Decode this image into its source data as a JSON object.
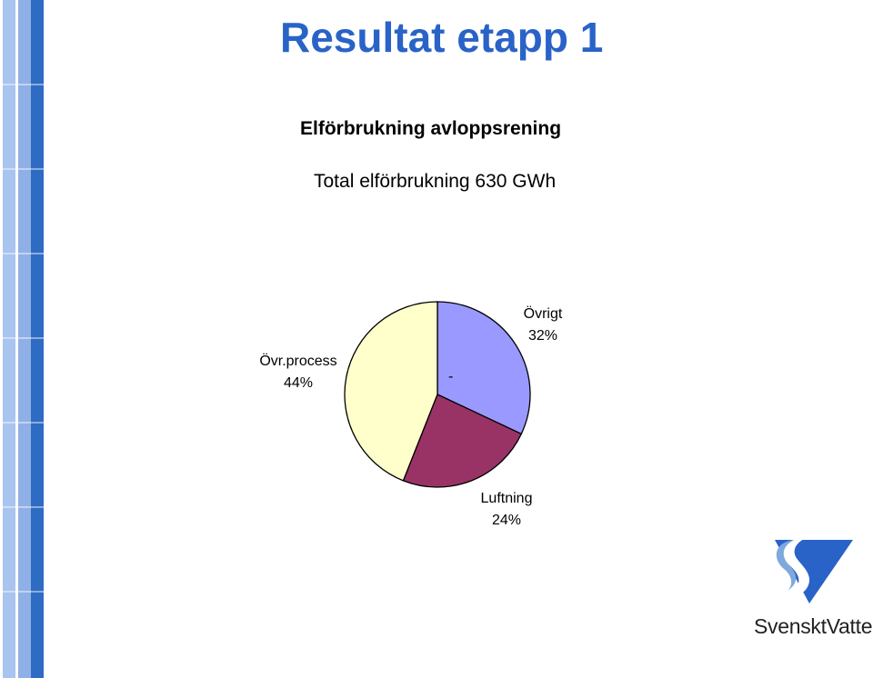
{
  "slide": {
    "title": "Resultat etapp 1",
    "logo_text": "SvensktVatten"
  },
  "colors": {
    "title": "#2a63c7",
    "stripe_light": "#a9c4ee",
    "stripe_mid": "#8fb0e6",
    "stripe_dark": "#2e6bc3"
  },
  "chart_data": {
    "type": "pie",
    "title": "Elförbrukning avloppsrening",
    "subtitle": "Total elförbrukning 630 GWh",
    "slices": [
      {
        "label": "Övrigt",
        "value": 32,
        "display": "32%",
        "color": "#9999ff"
      },
      {
        "label": "Luftning",
        "value": 24,
        "display": "24%",
        "color": "#993366"
      },
      {
        "label": "Övr.process",
        "value": 44,
        "display": "44%",
        "color": "#ffffcc"
      }
    ],
    "annotation": "-"
  }
}
